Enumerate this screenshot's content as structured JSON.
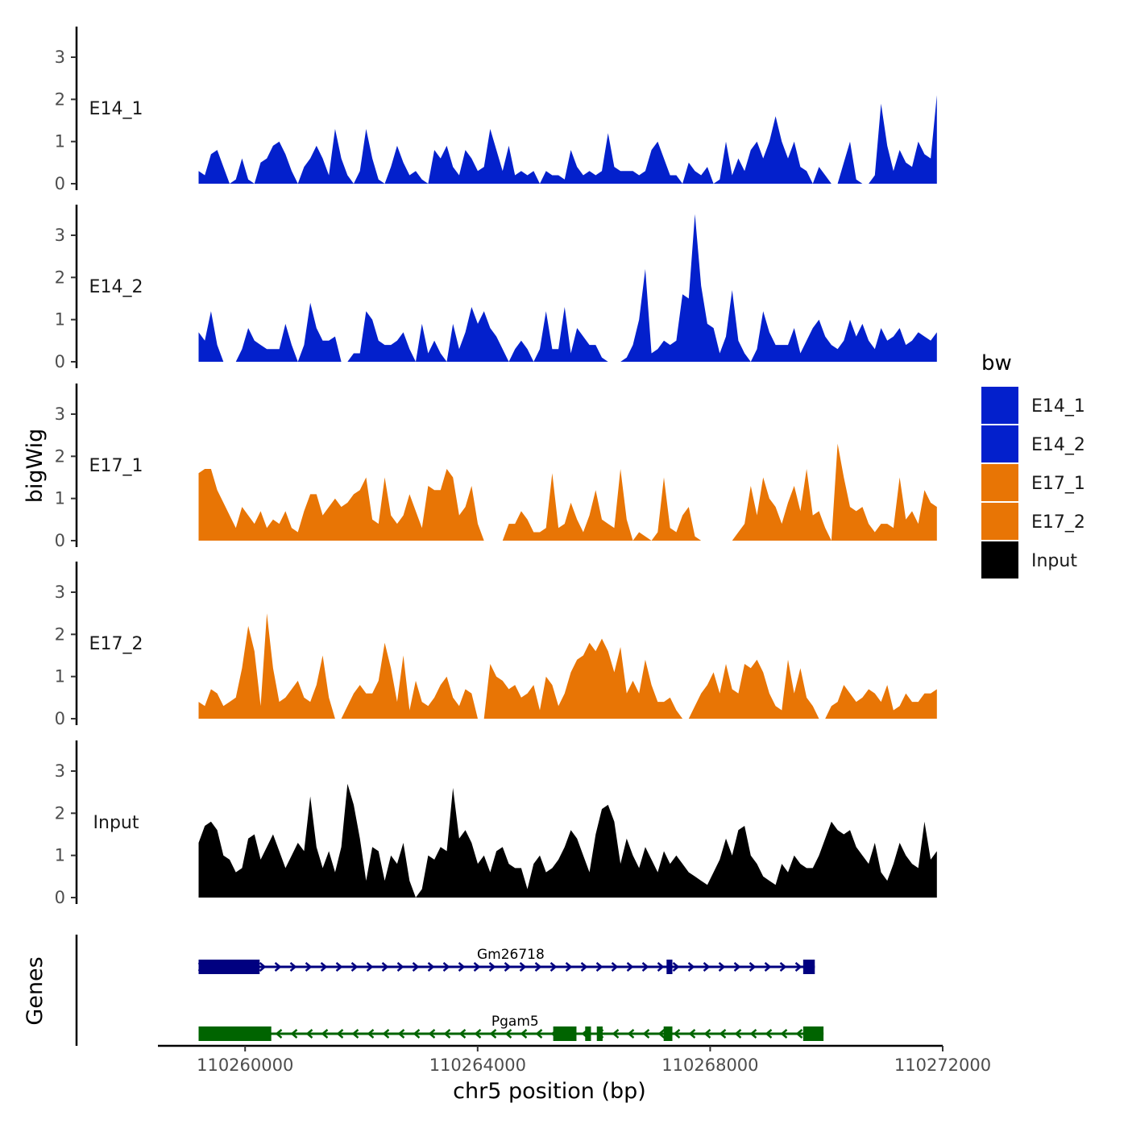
{
  "chart_data": {
    "type": "area",
    "y_axis_title": "bigWig",
    "genes_axis_title": "Genes",
    "x_axis_title": "chr5 position (bp)",
    "x_range": [
      110258500,
      110272000
    ],
    "x_ticks": [
      {
        "value": 110260000,
        "label": "110260000"
      },
      {
        "value": 110264000,
        "label": "110264000"
      },
      {
        "value": 110268000,
        "label": "110268000"
      },
      {
        "value": 110272000,
        "label": "110272000"
      }
    ],
    "y_range": [
      0,
      3.8
    ],
    "y_ticks": [
      {
        "value": 0,
        "label": "0"
      },
      {
        "value": 1,
        "label": "1"
      },
      {
        "value": 2,
        "label": "2"
      },
      {
        "value": 3,
        "label": "3"
      }
    ],
    "data_start": 110259200,
    "data_end": 110271900,
    "legend": {
      "title": "bw",
      "items": [
        {
          "label": "E14_1",
          "color": "#0320CC"
        },
        {
          "label": "E14_2",
          "color": "#0320CC"
        },
        {
          "label": "E17_1",
          "color": "#E87505"
        },
        {
          "label": "E17_2",
          "color": "#E87505"
        },
        {
          "label": "Input",
          "color": "#000000"
        }
      ]
    },
    "series": [
      {
        "name": "E14_1",
        "color": "#0320CC",
        "values": [
          0.3,
          0.2,
          0.7,
          0.8,
          0.4,
          0,
          0.1,
          0.6,
          0.1,
          0,
          0.5,
          0.6,
          0.9,
          1.0,
          0.7,
          0.3,
          0,
          0.4,
          0.6,
          0.9,
          0.6,
          0.2,
          1.3,
          0.6,
          0.2,
          0,
          0.3,
          1.3,
          0.6,
          0.1,
          0,
          0.4,
          0.9,
          0.5,
          0.2,
          0.3,
          0.1,
          0,
          0.8,
          0.6,
          0.9,
          0.4,
          0.2,
          0.8,
          0.6,
          0.3,
          0.4,
          1.3,
          0.8,
          0.3,
          0.9,
          0.2,
          0.3,
          0.2,
          0.3,
          0,
          0.3,
          0.2,
          0.2,
          0.1,
          0.8,
          0.4,
          0.2,
          0.3,
          0.2,
          0.3,
          1.2,
          0.4,
          0.3,
          0.3,
          0.3,
          0.2,
          0.3,
          0.8,
          1.0,
          0.6,
          0.2,
          0.2,
          0,
          0.5,
          0.3,
          0.2,
          0.4,
          0,
          0.1,
          1.0,
          0.2,
          0.6,
          0.3,
          0.8,
          1.0,
          0.6,
          1.0,
          1.6,
          1.0,
          0.6,
          1.0,
          0.4,
          0.3,
          0,
          0.4,
          0.2,
          0,
          0,
          0.5,
          1.0,
          0.1,
          0,
          0,
          0.2,
          1.9,
          0.9,
          0.3,
          0.8,
          0.5,
          0.4,
          1.0,
          0.7,
          0.6,
          2.1
        ]
      },
      {
        "name": "E14_2",
        "color": "#0320CC",
        "values": [
          0.7,
          0.5,
          1.2,
          0.4,
          0,
          0,
          0,
          0.3,
          0.8,
          0.5,
          0.4,
          0.3,
          0.3,
          0.3,
          0.9,
          0.4,
          0,
          0.4,
          1.4,
          0.8,
          0.5,
          0.5,
          0.6,
          0,
          0,
          0.2,
          0.2,
          1.2,
          1.0,
          0.5,
          0.4,
          0.4,
          0.5,
          0.7,
          0.3,
          0,
          0.9,
          0.2,
          0.5,
          0.2,
          0,
          0.9,
          0.3,
          0.7,
          1.3,
          0.9,
          1.2,
          0.8,
          0.6,
          0.3,
          0,
          0.3,
          0.5,
          0.3,
          0,
          0.3,
          1.2,
          0.3,
          0.3,
          1.3,
          0.2,
          0.8,
          0.6,
          0.4,
          0.4,
          0.1,
          0,
          0,
          0,
          0.1,
          0.4,
          1.0,
          2.2,
          0.2,
          0.3,
          0.5,
          0.4,
          0.5,
          1.6,
          1.5,
          3.5,
          1.8,
          0.9,
          0.8,
          0.2,
          0.6,
          1.7,
          0.5,
          0.2,
          0,
          0.3,
          1.2,
          0.7,
          0.4,
          0.4,
          0.4,
          0.8,
          0.2,
          0.5,
          0.8,
          1.0,
          0.6,
          0.4,
          0.3,
          0.5,
          1.0,
          0.6,
          0.9,
          0.5,
          0.3,
          0.8,
          0.5,
          0.6,
          0.8,
          0.4,
          0.5,
          0.7,
          0.6,
          0.5,
          0.7
        ]
      },
      {
        "name": "E17_1",
        "color": "#E87505",
        "values": [
          1.6,
          1.7,
          1.7,
          1.2,
          0.9,
          0.6,
          0.3,
          0.8,
          0.6,
          0.4,
          0.7,
          0.3,
          0.5,
          0.4,
          0.7,
          0.3,
          0.2,
          0.7,
          1.1,
          1.1,
          0.6,
          0.8,
          1.0,
          0.8,
          0.9,
          1.1,
          1.2,
          1.5,
          0.5,
          0.4,
          1.5,
          0.6,
          0.4,
          0.6,
          1.1,
          0.7,
          0.3,
          1.3,
          1.2,
          1.2,
          1.7,
          1.5,
          0.6,
          0.8,
          1.3,
          0.4,
          0,
          0,
          0,
          0,
          0.4,
          0.4,
          0.7,
          0.5,
          0.2,
          0.2,
          0.3,
          1.6,
          0.3,
          0.4,
          0.9,
          0.5,
          0.2,
          0.6,
          1.2,
          0.5,
          0.4,
          0.3,
          1.7,
          0.5,
          0,
          0.2,
          0.1,
          0,
          0.2,
          1.5,
          0.3,
          0.2,
          0.6,
          0.8,
          0.1,
          0,
          0,
          0,
          0,
          0,
          0,
          0.2,
          0.4,
          1.3,
          0.6,
          1.5,
          1.0,
          0.8,
          0.4,
          0.9,
          1.3,
          0.7,
          1.7,
          0.6,
          0.7,
          0.3,
          0,
          2.3,
          1.5,
          0.8,
          0.7,
          0.8,
          0.4,
          0.2,
          0.4,
          0.4,
          0.3,
          1.5,
          0.5,
          0.7,
          0.4,
          1.2,
          0.9,
          0.8
        ]
      },
      {
        "name": "E17_2",
        "color": "#E87505",
        "values": [
          0.4,
          0.3,
          0.7,
          0.6,
          0.3,
          0.4,
          0.5,
          1.2,
          2.2,
          1.6,
          0.3,
          2.5,
          1.2,
          0.4,
          0.5,
          0.7,
          0.9,
          0.5,
          0.4,
          0.8,
          1.5,
          0.5,
          0,
          0,
          0.3,
          0.6,
          0.8,
          0.6,
          0.6,
          0.9,
          1.8,
          1.2,
          0.4,
          1.5,
          0.2,
          0.9,
          0.4,
          0.3,
          0.5,
          0.8,
          1.0,
          0.5,
          0.3,
          0.7,
          0.6,
          0,
          0,
          1.3,
          1.0,
          0.9,
          0.7,
          0.8,
          0.5,
          0.6,
          0.8,
          0.2,
          1.0,
          0.8,
          0.3,
          0.6,
          1.1,
          1.4,
          1.5,
          1.8,
          1.6,
          1.9,
          1.6,
          1.1,
          1.7,
          0.6,
          0.9,
          0.6,
          1.4,
          0.8,
          0.4,
          0.4,
          0.5,
          0.2,
          0,
          0,
          0.3,
          0.6,
          0.8,
          1.1,
          0.6,
          1.3,
          0.7,
          0.6,
          1.3,
          1.2,
          1.4,
          1.1,
          0.6,
          0.3,
          0.2,
          1.4,
          0.6,
          1.2,
          0.5,
          0.3,
          0,
          0,
          0.3,
          0.4,
          0.8,
          0.6,
          0.4,
          0.5,
          0.7,
          0.6,
          0.4,
          0.8,
          0.2,
          0.3,
          0.6,
          0.4,
          0.4,
          0.6,
          0.6,
          0.7
        ]
      },
      {
        "name": "Input",
        "color": "#000000",
        "values": [
          1.3,
          1.7,
          1.8,
          1.6,
          1.0,
          0.9,
          0.6,
          0.7,
          1.4,
          1.5,
          0.9,
          1.2,
          1.5,
          1.1,
          0.7,
          1.0,
          1.3,
          1.1,
          2.4,
          1.2,
          0.7,
          1.1,
          0.6,
          1.2,
          2.7,
          2.2,
          1.4,
          0.4,
          1.2,
          1.1,
          0.4,
          1.0,
          0.8,
          1.3,
          0.4,
          0,
          0.2,
          1.0,
          0.9,
          1.2,
          1.1,
          2.6,
          1.4,
          1.6,
          1.3,
          0.8,
          1.0,
          0.6,
          1.1,
          1.2,
          0.8,
          0.7,
          0.7,
          0.2,
          0.8,
          1.0,
          0.6,
          0.7,
          0.9,
          1.2,
          1.6,
          1.4,
          1.0,
          0.6,
          1.5,
          2.1,
          2.2,
          1.8,
          0.8,
          1.4,
          1.0,
          0.7,
          1.2,
          0.9,
          0.6,
          1.1,
          0.8,
          1.0,
          0.8,
          0.6,
          0.5,
          0.4,
          0.3,
          0.6,
          0.9,
          1.4,
          1.0,
          1.6,
          1.7,
          1.0,
          0.8,
          0.5,
          0.4,
          0.3,
          0.8,
          0.6,
          1.0,
          0.8,
          0.7,
          0.7,
          1.0,
          1.4,
          1.8,
          1.6,
          1.5,
          1.6,
          1.2,
          1.0,
          0.8,
          1.3,
          0.6,
          0.4,
          0.8,
          1.3,
          1.0,
          0.8,
          0.7,
          1.8,
          0.9,
          1.1
        ]
      }
    ],
    "genes": [
      {
        "name": "Gm26718",
        "color": "#000080",
        "strand": "+",
        "start": 110259200,
        "end": 110269800,
        "exons": [
          [
            110259200,
            110260250
          ],
          [
            110267250,
            110267350
          ],
          [
            110269600,
            110269800
          ]
        ]
      },
      {
        "name": "Pgam5",
        "color": "#006400",
        "strand": "-",
        "start": 110259200,
        "end": 110269950,
        "exons": [
          [
            110259200,
            110260450
          ],
          [
            110265300,
            110265700
          ],
          [
            110265850,
            110265950
          ],
          [
            110266050,
            110266150
          ],
          [
            110267200,
            110267350
          ],
          [
            110269600,
            110269950
          ]
        ]
      }
    ]
  }
}
